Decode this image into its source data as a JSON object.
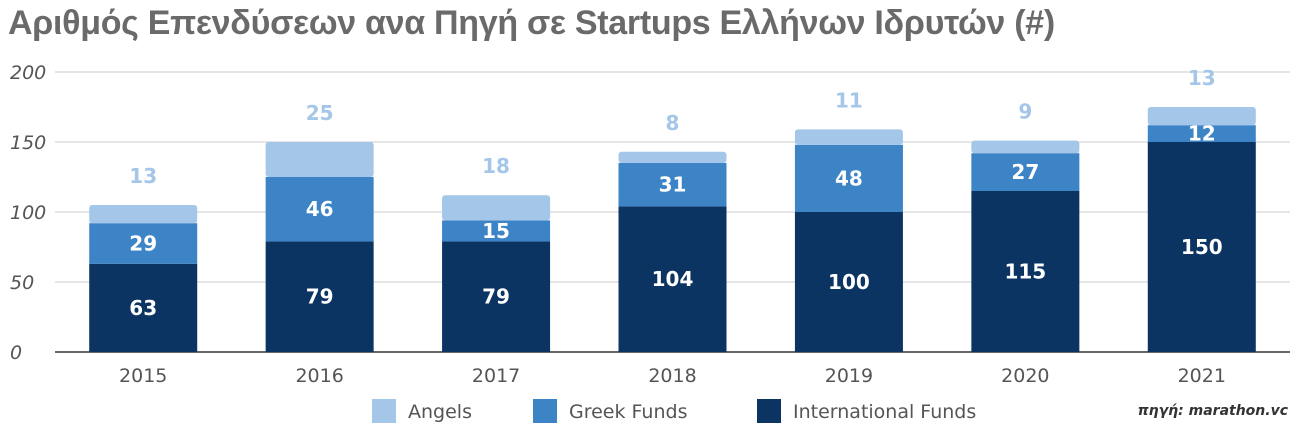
{
  "title": "Αριθμός Επενδύσεων ανα Πηγή σε Startups Ελλήνων Ιδρυτών (#)",
  "source": "πηγή: marathon.vc",
  "chart_data": {
    "type": "bar",
    "stacked": true,
    "title": "Αριθμός Επενδύσεων ανα Πηγή σε Startups Ελλήνων Ιδρυτών (#)",
    "categories": [
      "2015",
      "2016",
      "2017",
      "2018",
      "2019",
      "2020",
      "2021"
    ],
    "series": [
      {
        "name": "International Funds",
        "color": "#0b3463",
        "label_color": "#ffffff",
        "values": [
          63,
          79,
          79,
          104,
          100,
          115,
          150
        ]
      },
      {
        "name": "Greek Funds",
        "color": "#3d84c6",
        "label_color": "#ffffff",
        "values": [
          29,
          46,
          15,
          31,
          48,
          27,
          12
        ]
      },
      {
        "name": "Angels",
        "color": "#a4c6e8",
        "label_color": "#a4c6e8",
        "values": [
          13,
          25,
          18,
          8,
          11,
          9,
          13
        ]
      }
    ],
    "ylim": [
      0,
      200
    ],
    "yticks": [
      "0",
      "50",
      "100",
      "150",
      "200"
    ],
    "grid": true,
    "legend_position": "bottom",
    "legend": [
      "Angels",
      "Greek Funds",
      "International Funds"
    ]
  }
}
